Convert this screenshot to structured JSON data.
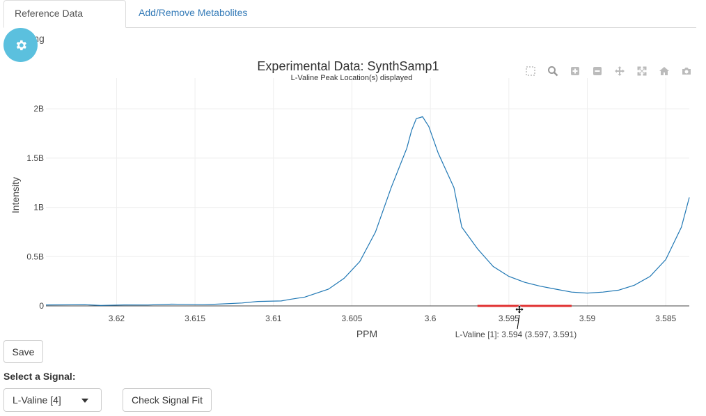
{
  "tabs": [
    {
      "label": "Reference Data Editing",
      "active": true
    },
    {
      "label": "Add/Remove Metabolites",
      "active": false
    }
  ],
  "settings": {
    "icon": "gear-icon",
    "color": "#5bc0de"
  },
  "plot": {
    "title": "Experimental Data: SynthSamp1",
    "subtitle": "L-Valine Peak Location(s) displayed",
    "annotation": "L-Valine [1]: 3.594 (3.597, 3.591)",
    "modebar": [
      "box-select-icon",
      "zoom-icon",
      "zoom-in-icon",
      "zoom-out-icon",
      "pan-icon",
      "autoscale-icon",
      "reset-axes-icon",
      "camera-icon"
    ]
  },
  "chart_data": {
    "type": "line",
    "title": "Experimental Data: SynthSamp1",
    "subtitle": "L-Valine Peak Location(s) displayed",
    "xlabel": "PPM",
    "ylabel": "Intensity",
    "xlim": [
      3.6245,
      3.5835
    ],
    "ylim": [
      0,
      2.1
    ],
    "x_reversed": true,
    "xticks": [
      3.62,
      3.615,
      3.61,
      3.605,
      3.6,
      3.595,
      3.59,
      3.585
    ],
    "xtick_labels": [
      "3.62",
      "3.615",
      "3.61",
      "3.605",
      "3.6",
      "3.595",
      "3.59",
      "3.585"
    ],
    "yticks": [
      0,
      0.5,
      1,
      1.5,
      2
    ],
    "ytick_labels": [
      "0",
      "0.5B",
      "1B",
      "1.5B",
      "2B"
    ],
    "y_unit": "B",
    "grid": true,
    "series": [
      {
        "color": "#1f77b4",
        "points": [
          [
            3.6245,
            0.01
          ],
          [
            3.622,
            0.012
          ],
          [
            3.621,
            0.005
          ],
          [
            3.6195,
            0.01
          ],
          [
            3.618,
            0.009
          ],
          [
            3.6165,
            0.018
          ],
          [
            3.6155,
            0.016
          ],
          [
            3.6145,
            0.013
          ],
          [
            3.614,
            0.015
          ],
          [
            3.612,
            0.03
          ],
          [
            3.611,
            0.045
          ],
          [
            3.6095,
            0.05
          ],
          [
            3.609,
            0.065
          ],
          [
            3.608,
            0.09
          ],
          [
            3.6065,
            0.17
          ],
          [
            3.6055,
            0.28
          ],
          [
            3.6045,
            0.45
          ],
          [
            3.6035,
            0.75
          ],
          [
            3.6025,
            1.2
          ],
          [
            3.6015,
            1.6
          ],
          [
            3.6012,
            1.78
          ],
          [
            3.6009,
            1.9
          ],
          [
            3.6005,
            1.92
          ],
          [
            3.6001,
            1.82
          ],
          [
            3.5995,
            1.55
          ],
          [
            3.5985,
            1.2
          ],
          [
            3.598,
            0.8
          ],
          [
            3.597,
            0.58
          ],
          [
            3.596,
            0.4
          ],
          [
            3.595,
            0.3
          ],
          [
            3.594,
            0.24
          ],
          [
            3.593,
            0.2
          ],
          [
            3.592,
            0.17
          ],
          [
            3.591,
            0.14
          ],
          [
            3.59,
            0.13
          ],
          [
            3.589,
            0.14
          ],
          [
            3.588,
            0.16
          ],
          [
            3.587,
            0.21
          ],
          [
            3.586,
            0.3
          ],
          [
            3.585,
            0.47
          ],
          [
            3.584,
            0.8
          ],
          [
            3.5835,
            1.1
          ]
        ]
      }
    ],
    "highlight_region": {
      "x": [
        3.597,
        3.591
      ],
      "color": "#e03030"
    }
  },
  "controls": {
    "save_label": "Save",
    "signal_label": "Select a Signal:",
    "signal_value": "L-Valine [4]",
    "check_label": "Check Signal Fit"
  }
}
